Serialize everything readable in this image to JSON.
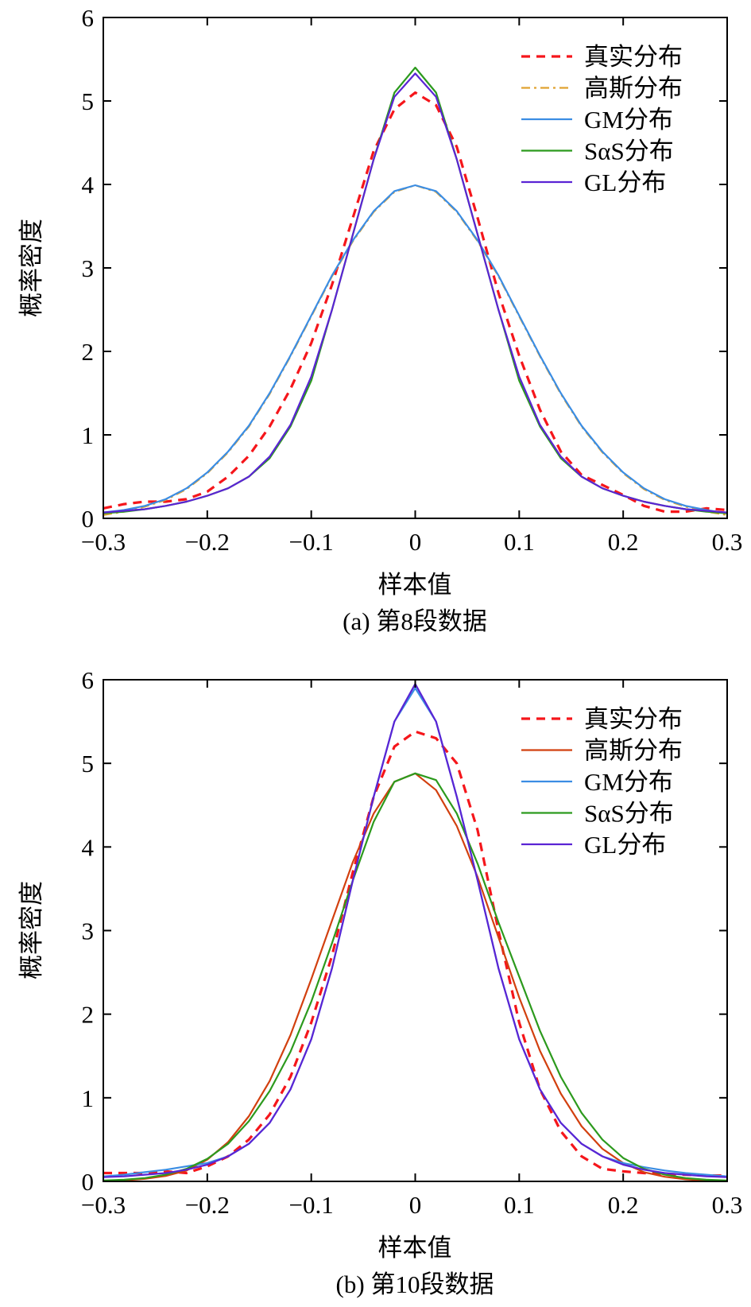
{
  "chart_data": [
    {
      "type": "line",
      "caption": "(a) 第8段数据",
      "xlabel": "样本值",
      "ylabel": "概率密度",
      "xlim": [
        -0.3,
        0.3
      ],
      "ylim": [
        0,
        6
      ],
      "xticks": [
        "−0.3",
        "−0.2",
        "−0.1",
        "0",
        "0.1",
        "0.2",
        "0.3"
      ],
      "xtick_values": [
        -0.3,
        -0.2,
        -0.1,
        0,
        0.1,
        0.2,
        0.3
      ],
      "yticks": [
        "0",
        "1",
        "2",
        "3",
        "4",
        "5",
        "6"
      ],
      "ytick_values": [
        0,
        1,
        2,
        3,
        4,
        5,
        6
      ],
      "grid": false,
      "legend_position": "top-right",
      "x": [
        -0.3,
        -0.28,
        -0.26,
        -0.24,
        -0.22,
        -0.2,
        -0.18,
        -0.16,
        -0.14,
        -0.12,
        -0.1,
        -0.08,
        -0.06,
        -0.04,
        -0.02,
        0,
        0.02,
        0.04,
        0.06,
        0.08,
        0.1,
        0.12,
        0.14,
        0.16,
        0.18,
        0.2,
        0.22,
        0.24,
        0.26,
        0.28,
        0.3
      ],
      "series": [
        {
          "name": "真实分布",
          "color": "#f5161b",
          "style": "dashed",
          "values": [
            0.12,
            0.17,
            0.2,
            0.2,
            0.23,
            0.32,
            0.5,
            0.75,
            1.1,
            1.55,
            2.1,
            2.8,
            3.6,
            4.4,
            4.9,
            5.1,
            4.95,
            4.45,
            3.6,
            2.7,
            1.95,
            1.3,
            0.8,
            0.52,
            0.4,
            0.28,
            0.15,
            0.08,
            0.08,
            0.12,
            0.1
          ]
        },
        {
          "name": "高斯分布",
          "color": "#e0a231",
          "style": "dashdot",
          "values": [
            0.04,
            0.08,
            0.14,
            0.22,
            0.35,
            0.54,
            0.79,
            1.1,
            1.49,
            1.94,
            2.42,
            2.9,
            3.32,
            3.67,
            3.91,
            3.99,
            3.91,
            3.67,
            3.32,
            2.9,
            2.42,
            1.94,
            1.49,
            1.1,
            0.79,
            0.54,
            0.35,
            0.22,
            0.14,
            0.08,
            0.04
          ]
        },
        {
          "name": "GM分布",
          "color": "#3b8de3",
          "style": "solid",
          "values": [
            0.07,
            0.1,
            0.15,
            0.23,
            0.36,
            0.55,
            0.8,
            1.11,
            1.5,
            1.95,
            2.43,
            2.91,
            3.33,
            3.68,
            3.92,
            3.99,
            3.92,
            3.68,
            3.33,
            2.91,
            2.43,
            1.95,
            1.5,
            1.11,
            0.8,
            0.55,
            0.36,
            0.23,
            0.15,
            0.1,
            0.06
          ]
        },
        {
          "name": "SαS分布",
          "color": "#2c9a1d",
          "style": "solid",
          "values": [
            0.06,
            0.08,
            0.11,
            0.15,
            0.2,
            0.27,
            0.36,
            0.5,
            0.72,
            1.1,
            1.65,
            2.5,
            3.4,
            4.3,
            5.1,
            5.4,
            5.1,
            4.3,
            3.4,
            2.5,
            1.65,
            1.1,
            0.72,
            0.5,
            0.36,
            0.27,
            0.2,
            0.15,
            0.11,
            0.08,
            0.06
          ]
        },
        {
          "name": "GL分布",
          "color": "#5a24d4",
          "style": "solid",
          "values": [
            0.07,
            0.09,
            0.11,
            0.15,
            0.2,
            0.27,
            0.36,
            0.5,
            0.74,
            1.12,
            1.7,
            2.5,
            3.4,
            4.3,
            5.05,
            5.33,
            5.05,
            4.3,
            3.4,
            2.5,
            1.7,
            1.12,
            0.74,
            0.5,
            0.36,
            0.27,
            0.2,
            0.15,
            0.11,
            0.09,
            0.07
          ]
        }
      ]
    },
    {
      "type": "line",
      "caption": "(b) 第10段数据",
      "xlabel": "样本值",
      "ylabel": "概率密度",
      "xlim": [
        -0.3,
        0.3
      ],
      "ylim": [
        0,
        6
      ],
      "xticks": [
        "−0.3",
        "−0.2",
        "−0.1",
        "0",
        "0.1",
        "0.2",
        "0.3"
      ],
      "xtick_values": [
        -0.3,
        -0.2,
        -0.1,
        0,
        0.1,
        0.2,
        0.3
      ],
      "yticks": [
        "0",
        "1",
        "2",
        "3",
        "4",
        "5",
        "6"
      ],
      "ytick_values": [
        0,
        1,
        2,
        3,
        4,
        5,
        6
      ],
      "grid": false,
      "legend_position": "top-right",
      "x": [
        -0.3,
        -0.28,
        -0.26,
        -0.24,
        -0.22,
        -0.2,
        -0.18,
        -0.16,
        -0.14,
        -0.12,
        -0.1,
        -0.08,
        -0.06,
        -0.04,
        -0.02,
        0,
        0.02,
        0.04,
        0.06,
        0.08,
        0.1,
        0.12,
        0.14,
        0.16,
        0.18,
        0.2,
        0.22,
        0.24,
        0.26,
        0.28,
        0.3
      ],
      "series": [
        {
          "name": "真实分布",
          "color": "#f5161b",
          "style": "dashed",
          "values": [
            0.1,
            0.1,
            0.1,
            0.12,
            0.1,
            0.18,
            0.3,
            0.5,
            0.8,
            1.25,
            1.9,
            2.7,
            3.7,
            4.6,
            5.2,
            5.38,
            5.3,
            5.0,
            4.2,
            3.0,
            1.9,
            1.1,
            0.6,
            0.3,
            0.15,
            0.12,
            0.1,
            0.09,
            0.08,
            0.07,
            0.07
          ]
        },
        {
          "name": "高斯分布",
          "color": "#d2400f",
          "style": "solid",
          "values": [
            0.005,
            0.013,
            0.03,
            0.065,
            0.13,
            0.26,
            0.47,
            0.78,
            1.2,
            1.75,
            2.42,
            3.12,
            3.82,
            4.4,
            4.78,
            4.88,
            4.68,
            4.25,
            3.64,
            2.92,
            2.2,
            1.56,
            1.05,
            0.66,
            0.39,
            0.22,
            0.11,
            0.055,
            0.025,
            0.01,
            0.004
          ]
        },
        {
          "name": "GM分布",
          "color": "#3b8de3",
          "style": "solid",
          "values": [
            0.06,
            0.08,
            0.11,
            0.14,
            0.18,
            0.22,
            0.3,
            0.45,
            0.7,
            1.1,
            1.7,
            2.55,
            3.6,
            4.6,
            5.5,
            5.9,
            5.5,
            4.6,
            3.6,
            2.55,
            1.7,
            1.1,
            0.7,
            0.45,
            0.3,
            0.22,
            0.17,
            0.13,
            0.1,
            0.08,
            0.06
          ]
        },
        {
          "name": "SαS分布",
          "color": "#2c9a1d",
          "style": "solid",
          "values": [
            0.01,
            0.02,
            0.04,
            0.08,
            0.15,
            0.27,
            0.45,
            0.72,
            1.08,
            1.55,
            2.15,
            2.85,
            3.6,
            4.3,
            4.78,
            4.88,
            4.8,
            4.4,
            3.8,
            3.1,
            2.45,
            1.8,
            1.25,
            0.82,
            0.5,
            0.28,
            0.15,
            0.08,
            0.04,
            0.02,
            0.01
          ]
        },
        {
          "name": "GL分布",
          "color": "#5a24d4",
          "style": "solid",
          "values": [
            0.05,
            0.06,
            0.08,
            0.1,
            0.14,
            0.2,
            0.3,
            0.45,
            0.7,
            1.1,
            1.7,
            2.55,
            3.6,
            4.6,
            5.5,
            5.95,
            5.5,
            4.6,
            3.6,
            2.55,
            1.7,
            1.1,
            0.7,
            0.45,
            0.3,
            0.2,
            0.14,
            0.1,
            0.08,
            0.06,
            0.05
          ]
        }
      ]
    }
  ]
}
